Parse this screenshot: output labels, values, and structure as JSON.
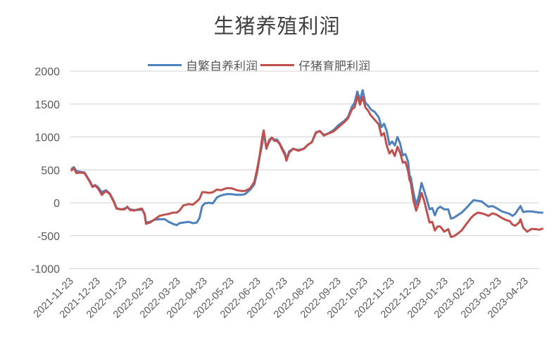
{
  "chart_data": {
    "type": "line",
    "title": "生猪养殖利润",
    "xlabel": "",
    "ylabel": "",
    "ylim": [
      -1000,
      2000
    ],
    "yticks": [
      2000,
      1500,
      1000,
      500,
      0,
      -500,
      -1000
    ],
    "grid": true,
    "legend_position": "top",
    "x_tick_labels": [
      "2021-11-23",
      "2021-12-23",
      "2022-01-23",
      "2022-02-23",
      "2022-03-23",
      "2022-04-23",
      "2022-05-23",
      "2022-06-23",
      "2022-07-23",
      "2022-08-23",
      "2022-09-23",
      "2022-10-23",
      "2022-11-23",
      "2022-12-23",
      "2023-01-23",
      "2023-02-23",
      "2023-03-23",
      "2023-04-23"
    ],
    "x_note": "x values are month offsets from 2021-11-23",
    "series": [
      {
        "name": "自繁自养利润",
        "color": "#4f81bd",
        "points": [
          [
            0,
            510
          ],
          [
            0.1,
            540
          ],
          [
            0.2,
            480
          ],
          [
            0.35,
            470
          ],
          [
            0.5,
            460
          ],
          [
            0.7,
            330
          ],
          [
            0.8,
            250
          ],
          [
            0.9,
            270
          ],
          [
            1.0,
            240
          ],
          [
            1.15,
            160
          ],
          [
            1.3,
            190
          ],
          [
            1.45,
            140
          ],
          [
            1.6,
            20
          ],
          [
            1.7,
            -80
          ],
          [
            1.85,
            -100
          ],
          [
            2.0,
            -90
          ],
          [
            2.1,
            -70
          ],
          [
            2.2,
            -100
          ],
          [
            2.35,
            -110
          ],
          [
            2.5,
            -110
          ],
          [
            2.65,
            -100
          ],
          [
            2.75,
            -170
          ],
          [
            2.8,
            -300
          ],
          [
            2.95,
            -290
          ],
          [
            3.1,
            -260
          ],
          [
            3.3,
            -250
          ],
          [
            3.5,
            -250
          ],
          [
            3.65,
            -290
          ],
          [
            3.8,
            -320
          ],
          [
            3.95,
            -340
          ],
          [
            4.05,
            -310
          ],
          [
            4.2,
            -300
          ],
          [
            4.4,
            -290
          ],
          [
            4.55,
            -310
          ],
          [
            4.7,
            -300
          ],
          [
            4.8,
            -230
          ],
          [
            4.9,
            -50
          ],
          [
            5.0,
            -10
          ],
          [
            5.15,
            0
          ],
          [
            5.3,
            -10
          ],
          [
            5.45,
            80
          ],
          [
            5.6,
            110
          ],
          [
            5.8,
            130
          ],
          [
            6.0,
            130
          ],
          [
            6.2,
            120
          ],
          [
            6.35,
            120
          ],
          [
            6.5,
            130
          ],
          [
            6.7,
            200
          ],
          [
            6.85,
            280
          ],
          [
            6.95,
            450
          ],
          [
            7.05,
            700
          ],
          [
            7.15,
            900
          ],
          [
            7.2,
            1080
          ],
          [
            7.3,
            830
          ],
          [
            7.4,
            920
          ],
          [
            7.5,
            990
          ],
          [
            7.6,
            960
          ],
          [
            7.7,
            960
          ],
          [
            7.8,
            900
          ],
          [
            7.9,
            820
          ],
          [
            8.0,
            750
          ],
          [
            8.05,
            650
          ],
          [
            8.15,
            780
          ],
          [
            8.3,
            820
          ],
          [
            8.5,
            800
          ],
          [
            8.7,
            820
          ],
          [
            8.85,
            880
          ],
          [
            9.0,
            920
          ],
          [
            9.15,
            1070
          ],
          [
            9.3,
            1090
          ],
          [
            9.45,
            1030
          ],
          [
            9.6,
            1050
          ],
          [
            9.8,
            1100
          ],
          [
            10.0,
            1180
          ],
          [
            10.2,
            1240
          ],
          [
            10.35,
            1300
          ],
          [
            10.5,
            1460
          ],
          [
            10.6,
            1520
          ],
          [
            10.7,
            1690
          ],
          [
            10.8,
            1560
          ],
          [
            10.9,
            1710
          ],
          [
            11.0,
            1520
          ],
          [
            11.1,
            1480
          ],
          [
            11.2,
            1420
          ],
          [
            11.35,
            1380
          ],
          [
            11.5,
            1300
          ],
          [
            11.6,
            1150
          ],
          [
            11.7,
            1200
          ],
          [
            11.8,
            1090
          ],
          [
            11.9,
            880
          ],
          [
            12.0,
            930
          ],
          [
            12.1,
            870
          ],
          [
            12.2,
            1000
          ],
          [
            12.3,
            900
          ],
          [
            12.4,
            720
          ],
          [
            12.5,
            740
          ],
          [
            12.6,
            620
          ],
          [
            12.65,
            420
          ],
          [
            12.7,
            380
          ],
          [
            12.8,
            150
          ],
          [
            12.9,
            -30
          ],
          [
            13.0,
            100
          ],
          [
            13.1,
            300
          ],
          [
            13.2,
            180
          ],
          [
            13.3,
            50
          ],
          [
            13.4,
            -100
          ],
          [
            13.5,
            -80
          ],
          [
            13.6,
            -190
          ],
          [
            13.7,
            -90
          ],
          [
            13.8,
            -60
          ],
          [
            13.95,
            -100
          ],
          [
            14.1,
            -100
          ],
          [
            14.2,
            -240
          ],
          [
            14.3,
            -230
          ],
          [
            14.45,
            -190
          ],
          [
            14.6,
            -150
          ],
          [
            14.8,
            -70
          ],
          [
            14.95,
            0
          ],
          [
            15.05,
            40
          ],
          [
            15.2,
            30
          ],
          [
            15.35,
            20
          ],
          [
            15.5,
            -30
          ],
          [
            15.6,
            -60
          ],
          [
            15.75,
            -50
          ],
          [
            15.9,
            -80
          ],
          [
            16.1,
            -130
          ],
          [
            16.25,
            -150
          ],
          [
            16.4,
            -170
          ],
          [
            16.5,
            -200
          ],
          [
            16.6,
            -170
          ],
          [
            16.75,
            -80
          ],
          [
            16.8,
            -50
          ],
          [
            16.9,
            -140
          ],
          [
            17.05,
            -130
          ],
          [
            17.2,
            -130
          ],
          [
            17.35,
            -140
          ],
          [
            17.5,
            -150
          ],
          [
            17.65,
            -150
          ]
        ]
      },
      {
        "name": "仔猪育肥利润",
        "color": "#c0504d",
        "points": [
          [
            0,
            480
          ],
          [
            0.1,
            530
          ],
          [
            0.2,
            450
          ],
          [
            0.35,
            460
          ],
          [
            0.5,
            450
          ],
          [
            0.7,
            320
          ],
          [
            0.8,
            240
          ],
          [
            0.9,
            260
          ],
          [
            1.0,
            220
          ],
          [
            1.15,
            120
          ],
          [
            1.3,
            180
          ],
          [
            1.45,
            130
          ],
          [
            1.6,
            10
          ],
          [
            1.7,
            -90
          ],
          [
            1.85,
            -100
          ],
          [
            2.0,
            -100
          ],
          [
            2.1,
            -60
          ],
          [
            2.2,
            -110
          ],
          [
            2.35,
            -120
          ],
          [
            2.5,
            -100
          ],
          [
            2.65,
            -90
          ],
          [
            2.75,
            -180
          ],
          [
            2.8,
            -320
          ],
          [
            2.95,
            -300
          ],
          [
            3.1,
            -260
          ],
          [
            3.3,
            -200
          ],
          [
            3.5,
            -180
          ],
          [
            3.65,
            -170
          ],
          [
            3.8,
            -150
          ],
          [
            3.95,
            -150
          ],
          [
            4.05,
            -120
          ],
          [
            4.2,
            -40
          ],
          [
            4.4,
            -20
          ],
          [
            4.55,
            -30
          ],
          [
            4.7,
            20
          ],
          [
            4.8,
            60
          ],
          [
            4.9,
            160
          ],
          [
            5.0,
            160
          ],
          [
            5.15,
            150
          ],
          [
            5.3,
            160
          ],
          [
            5.45,
            200
          ],
          [
            5.6,
            190
          ],
          [
            5.8,
            220
          ],
          [
            6.0,
            220
          ],
          [
            6.2,
            190
          ],
          [
            6.35,
            180
          ],
          [
            6.5,
            180
          ],
          [
            6.7,
            220
          ],
          [
            6.85,
            320
          ],
          [
            6.95,
            500
          ],
          [
            7.05,
            720
          ],
          [
            7.15,
            1000
          ],
          [
            7.2,
            1100
          ],
          [
            7.3,
            820
          ],
          [
            7.4,
            950
          ],
          [
            7.5,
            990
          ],
          [
            7.6,
            940
          ],
          [
            7.7,
            940
          ],
          [
            7.8,
            890
          ],
          [
            7.9,
            800
          ],
          [
            8.0,
            720
          ],
          [
            8.05,
            640
          ],
          [
            8.15,
            760
          ],
          [
            8.3,
            820
          ],
          [
            8.5,
            790
          ],
          [
            8.7,
            820
          ],
          [
            8.85,
            880
          ],
          [
            9.0,
            920
          ],
          [
            9.15,
            1060
          ],
          [
            9.3,
            1090
          ],
          [
            9.45,
            1020
          ],
          [
            9.6,
            1050
          ],
          [
            9.8,
            1080
          ],
          [
            10.0,
            1150
          ],
          [
            10.2,
            1220
          ],
          [
            10.35,
            1280
          ],
          [
            10.5,
            1420
          ],
          [
            10.6,
            1450
          ],
          [
            10.7,
            1620
          ],
          [
            10.8,
            1490
          ],
          [
            10.9,
            1610
          ],
          [
            11.0,
            1450
          ],
          [
            11.1,
            1400
          ],
          [
            11.2,
            1330
          ],
          [
            11.35,
            1260
          ],
          [
            11.5,
            1190
          ],
          [
            11.6,
            1020
          ],
          [
            11.7,
            1060
          ],
          [
            11.8,
            870
          ],
          [
            11.9,
            750
          ],
          [
            12.0,
            800
          ],
          [
            12.1,
            710
          ],
          [
            12.2,
            850
          ],
          [
            12.3,
            760
          ],
          [
            12.4,
            610
          ],
          [
            12.5,
            620
          ],
          [
            12.6,
            480
          ],
          [
            12.65,
            350
          ],
          [
            12.7,
            300
          ],
          [
            12.8,
            30
          ],
          [
            12.9,
            -120
          ],
          [
            13.0,
            0
          ],
          [
            13.1,
            150
          ],
          [
            13.2,
            30
          ],
          [
            13.3,
            -140
          ],
          [
            13.4,
            -300
          ],
          [
            13.5,
            -290
          ],
          [
            13.6,
            -420
          ],
          [
            13.7,
            -360
          ],
          [
            13.8,
            -360
          ],
          [
            13.95,
            -440
          ],
          [
            14.1,
            -400
          ],
          [
            14.2,
            -520
          ],
          [
            14.3,
            -510
          ],
          [
            14.45,
            -470
          ],
          [
            14.6,
            -420
          ],
          [
            14.8,
            -310
          ],
          [
            14.95,
            -230
          ],
          [
            15.05,
            -190
          ],
          [
            15.2,
            -150
          ],
          [
            15.35,
            -160
          ],
          [
            15.5,
            -180
          ],
          [
            15.6,
            -200
          ],
          [
            15.75,
            -160
          ],
          [
            15.9,
            -180
          ],
          [
            16.1,
            -230
          ],
          [
            16.25,
            -260
          ],
          [
            16.4,
            -280
          ],
          [
            16.5,
            -330
          ],
          [
            16.6,
            -350
          ],
          [
            16.75,
            -300
          ],
          [
            16.8,
            -250
          ],
          [
            16.9,
            -380
          ],
          [
            17.05,
            -440
          ],
          [
            17.2,
            -400
          ],
          [
            17.35,
            -400
          ],
          [
            17.5,
            -410
          ],
          [
            17.65,
            -390
          ]
        ]
      }
    ]
  },
  "legend": {
    "items": [
      {
        "label": "自繁自养利润",
        "color": "#4f81bd"
      },
      {
        "label": "仔猪育肥利润",
        "color": "#c0504d"
      }
    ]
  }
}
